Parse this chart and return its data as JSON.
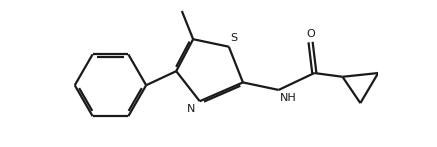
{
  "bg_color": "#ffffff",
  "line_color": "#1a1a1a",
  "line_width": 1.6,
  "fig_width": 4.37,
  "fig_height": 1.47,
  "dpi": 100,
  "atoms": {
    "S_label": "S",
    "N_label": "N",
    "O_label": "O",
    "NH_label": "NH"
  },
  "font_size": 7.5
}
